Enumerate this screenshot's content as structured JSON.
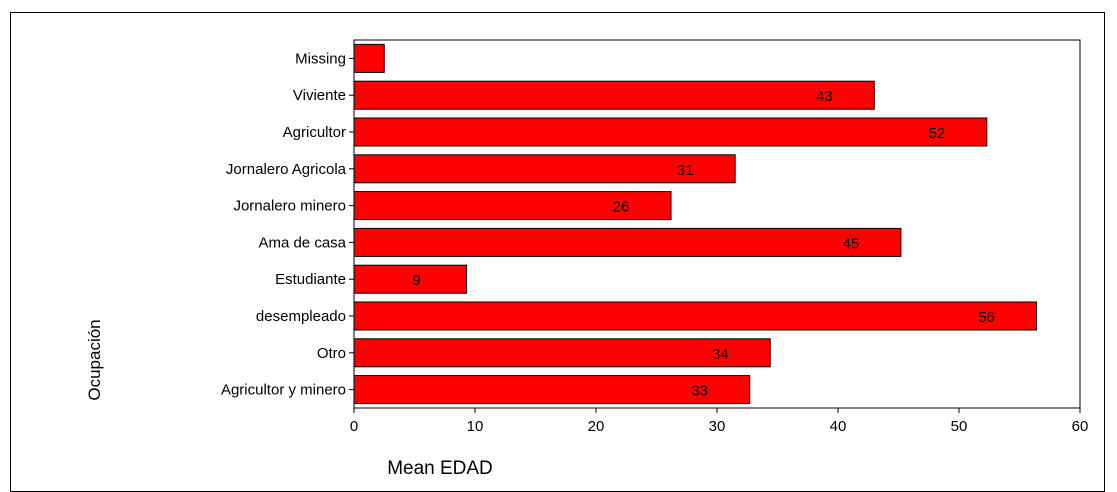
{
  "chart_data": {
    "type": "bar",
    "orientation": "horizontal",
    "categories": [
      "Missing",
      "Viviente",
      "Agricultor",
      "Jornalero Agricola",
      "Jornalero minero",
      "Ama de casa",
      "Estudiante",
      "desempleado",
      "Otro",
      "Agricultor y minero"
    ],
    "values": [
      2.5,
      43,
      52.3,
      31.5,
      26.2,
      45.2,
      9.3,
      56.4,
      34.4,
      32.7
    ],
    "data_labels": [
      "",
      "43",
      "52",
      "31",
      "26",
      "45",
      "9",
      "56",
      "34",
      "33"
    ],
    "xlabel": "Mean EDAD",
    "ylabel": "Ocupación",
    "xlim": [
      0,
      60
    ],
    "xticks": [
      "0",
      "10",
      "20",
      "30",
      "40",
      "50",
      "60"
    ],
    "grid": false,
    "colors": {
      "bar_fill": "#ff0000",
      "bar_stroke": "#000000"
    }
  }
}
